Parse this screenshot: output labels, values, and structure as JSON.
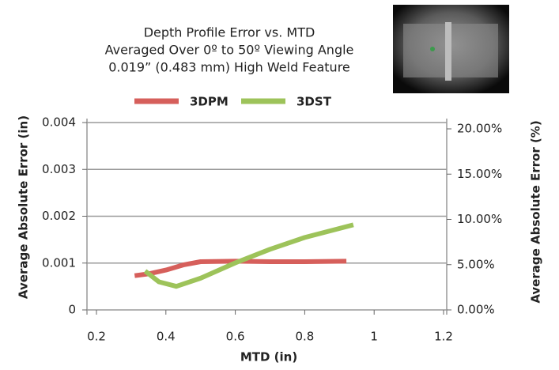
{
  "chart_data": {
    "type": "line",
    "title": [
      "Depth Profile Error vs. MTD",
      "Averaged Over 0º to 50º Viewing Angle",
      "0.019” (0.483 mm) High Weld Feature"
    ],
    "x_label": "MTD (in)",
    "y_label": "Average Absolute Error (in)",
    "y2_label": "Average Absolute Error (%)",
    "xlim": [
      0.2,
      1.2
    ],
    "xticks": [
      0.2,
      0.4,
      0.6,
      0.8,
      1,
      1.2
    ],
    "ylim": [
      0,
      0.004
    ],
    "yticks": [
      0,
      0.001,
      0.002,
      0.003,
      0.004
    ],
    "y2lim": [
      0,
      20
    ],
    "y2ticks": [
      {
        "value": 0,
        "label": "0.00%"
      },
      {
        "value": 5,
        "label": "5.00%"
      },
      {
        "value": 10,
        "label": "10.00%"
      },
      {
        "value": 15,
        "label": "15.00%"
      },
      {
        "value": 20,
        "label": "20.00%"
      }
    ],
    "grid": true,
    "legend": "top",
    "series": [
      {
        "name": "3DPM",
        "color": "#d65f5b",
        "x": [
          0.31,
          0.35,
          0.4,
          0.45,
          0.5,
          0.6,
          0.7,
          0.8,
          0.92
        ],
        "values": [
          0.00073,
          0.00077,
          0.00085,
          0.00096,
          0.00103,
          0.00104,
          0.00103,
          0.00103,
          0.00104
        ]
      },
      {
        "name": "3DST",
        "color": "#9dc35a",
        "axis": "y2",
        "x": [
          0.34,
          0.38,
          0.43,
          0.5,
          0.6,
          0.7,
          0.8,
          0.94
        ],
        "values": [
          4.3,
          3.1,
          2.6,
          3.5,
          5.2,
          6.7,
          8.0,
          9.4
        ]
      }
    ]
  }
}
